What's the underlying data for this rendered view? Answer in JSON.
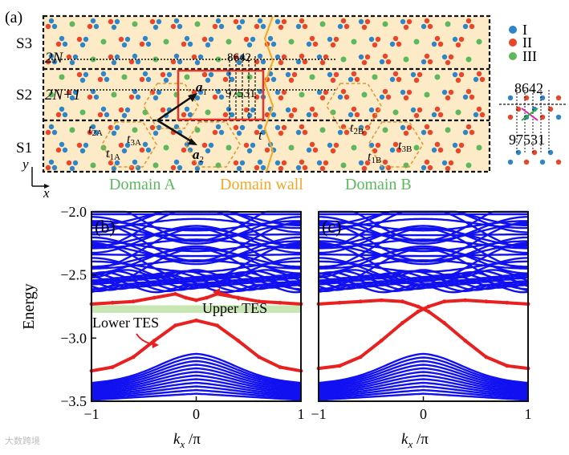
{
  "panel_a": {
    "label": "(a)",
    "stripes": [
      "S3",
      "S2",
      "S1"
    ],
    "row_labels": {
      "top": "2N",
      "middle": "2N+1"
    },
    "vectors": {
      "a1": "a",
      "a1_sub": "1",
      "a2": "a",
      "a2_sub": "2",
      "t": "t"
    },
    "hoppings": {
      "t2A": [
        "t",
        "2A"
      ],
      "t3A": [
        "t",
        "3A"
      ],
      "t1A": [
        "t",
        "1A"
      ],
      "t2B": [
        "t",
        "2B"
      ],
      "t3B": [
        "t",
        "3B"
      ],
      "t1B": [
        "t",
        "1B"
      ]
    },
    "top_digits": "8642",
    "bottom_digits": "97531",
    "domain_a": "Domain A",
    "domain_wall": "Domain wall",
    "domain_b": "Domain B",
    "axis_y": "y",
    "axis_x": "x",
    "legend": [
      {
        "label": "I",
        "color": "#2e86c9"
      },
      {
        "label": "II",
        "color": "#e8452a"
      },
      {
        "label": "III",
        "color": "#5cb85c"
      }
    ],
    "side_top_digits": "8642",
    "side_bottom_digits": "97531",
    "colors": {
      "background": "#fcebc6",
      "domain_wall": "#f5a623",
      "highlight": "#e8352a"
    }
  },
  "chart_data": [
    {
      "type": "line",
      "panel": "(b)",
      "ylabel": "Energy",
      "xlabel_main": "k",
      "xlabel_sub": "x",
      "xlabel_unit": " /π",
      "xlim": [
        -1,
        1
      ],
      "ylim": [
        -3.5,
        -2.0
      ],
      "xticks": [
        -1,
        0,
        1
      ],
      "xtick_labels": [
        "−1",
        "0",
        "1"
      ],
      "yticks": [
        -3.5,
        -3.0,
        -2.5,
        -2.0
      ],
      "ytick_labels": [
        "−3.5",
        "−3.0",
        "−2.5",
        "−2.0"
      ],
      "bulk_color": "#1010f0",
      "edge_color": "#e82020",
      "gap_shade": {
        "from": -2.8,
        "to": -2.74,
        "color": "#c8e6b4"
      },
      "annotations": [
        "Lower TES",
        "Upper TES"
      ],
      "series": [
        {
          "name": "Lower TES",
          "x": [
            -1,
            -0.8,
            -0.6,
            -0.4,
            -0.2,
            0,
            0.2,
            0.4,
            0.6,
            0.8,
            1
          ],
          "y": [
            -3.26,
            -3.23,
            -3.15,
            -3.02,
            -2.9,
            -2.86,
            -2.9,
            -3.02,
            -3.15,
            -3.23,
            -3.26
          ]
        },
        {
          "name": "Upper TES",
          "x": [
            -1,
            -0.8,
            -0.6,
            -0.4,
            -0.2,
            -0.1,
            0,
            0.1,
            0.2,
            0.4,
            0.6,
            0.8,
            1
          ],
          "y": [
            -2.73,
            -2.72,
            -2.71,
            -2.68,
            -2.65,
            -2.68,
            -2.7,
            -2.68,
            -2.65,
            -2.68,
            -2.71,
            -2.72,
            -2.73
          ]
        }
      ]
    },
    {
      "type": "line",
      "panel": "(c)",
      "xlabel_main": "k",
      "xlabel_sub": "x",
      "xlabel_unit": " /π",
      "xlim": [
        -1,
        1
      ],
      "ylim": [
        -3.5,
        -2.0
      ],
      "xticks": [
        -1,
        0,
        1
      ],
      "xtick_labels": [
        "−1",
        "0",
        "1"
      ],
      "bulk_color": "#1010f0",
      "edge_color": "#e82020",
      "series": [
        {
          "x": [
            -1,
            -0.8,
            -0.6,
            -0.4,
            -0.2,
            -0.05,
            0
          ],
          "y": [
            -3.24,
            -3.22,
            -3.15,
            -3.02,
            -2.88,
            -2.79,
            -2.77
          ]
        },
        {
          "x": [
            0,
            0.05,
            0.2,
            0.4,
            0.6,
            0.8,
            1
          ],
          "y": [
            -2.77,
            -2.79,
            -2.88,
            -3.02,
            -3.15,
            -3.22,
            -3.24
          ]
        },
        {
          "x": [
            -1,
            -0.8,
            -0.6,
            -0.4,
            -0.2,
            -0.05,
            0
          ],
          "y": [
            -2.73,
            -2.72,
            -2.71,
            -2.7,
            -2.71,
            -2.75,
            -2.77
          ]
        },
        {
          "x": [
            0,
            0.05,
            0.2,
            0.4,
            0.6,
            0.8,
            1
          ],
          "y": [
            -2.77,
            -2.75,
            -2.71,
            -2.7,
            -2.71,
            -2.72,
            -2.73
          ]
        }
      ]
    }
  ],
  "watermark": "大数跨境"
}
